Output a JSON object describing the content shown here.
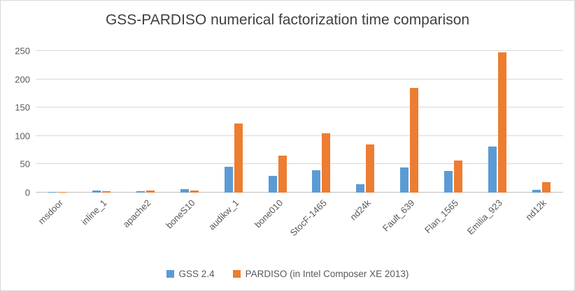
{
  "chart_data": {
    "type": "bar",
    "title": "GSS-PARDISO numerical factorization time comparison",
    "categories": [
      "msdoor",
      "inline_1",
      "apache2",
      "boneS10",
      "audikw_1",
      "bone010",
      "StocF-1465",
      "nd24k",
      "Fault_639",
      "Flan_1565",
      "Emilia_923",
      "nd12k"
    ],
    "series": [
      {
        "name": "GSS 2.4",
        "color": "#5B9BD5",
        "values": [
          1,
          4,
          3,
          6,
          45,
          30,
          40,
          15,
          44,
          38,
          81,
          5
        ]
      },
      {
        "name": "PARDISO (in Intel Composer XE 2013)",
        "color": "#ED7D31",
        "values": [
          1,
          2,
          4,
          4,
          122,
          65,
          105,
          85,
          185,
          57,
          247,
          19
        ]
      }
    ],
    "xlabel": "",
    "ylabel": "",
    "ylim": [
      0,
      250
    ],
    "yticks": [
      0,
      50,
      100,
      150,
      200,
      250
    ],
    "grid": true,
    "legend_position": "bottom"
  }
}
